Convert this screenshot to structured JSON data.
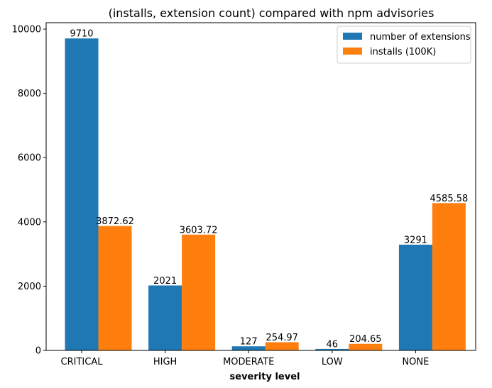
{
  "chart_data": {
    "type": "bar",
    "title": "(installs, extension count) compared with npm advisories",
    "xlabel": "severity level",
    "ylabel": "",
    "categories": [
      "CRITICAL",
      "HIGH",
      "MODERATE",
      "LOW",
      "NONE"
    ],
    "series": [
      {
        "name": "number of extensions",
        "color": "#1f77b4",
        "values": [
          9710,
          2021,
          127,
          46,
          3291
        ],
        "labels": [
          "9710",
          "2021",
          "127",
          "46",
          "3291"
        ]
      },
      {
        "name": "installs (100K)",
        "color": "#ff7f0e",
        "values": [
          3872.62,
          3603.72,
          254.97,
          204.65,
          4585.58
        ],
        "labels": [
          "3872.62",
          "3603.72",
          "254.97",
          "204.65",
          "4585.58"
        ]
      }
    ],
    "ylim": [
      0,
      10200
    ],
    "yticks": [
      0,
      2000,
      4000,
      6000,
      8000,
      10000
    ],
    "ytick_labels": [
      "0",
      "2000",
      "4000",
      "6000",
      "8000",
      "10000"
    ],
    "grid": false,
    "legend_position": "top-right"
  }
}
